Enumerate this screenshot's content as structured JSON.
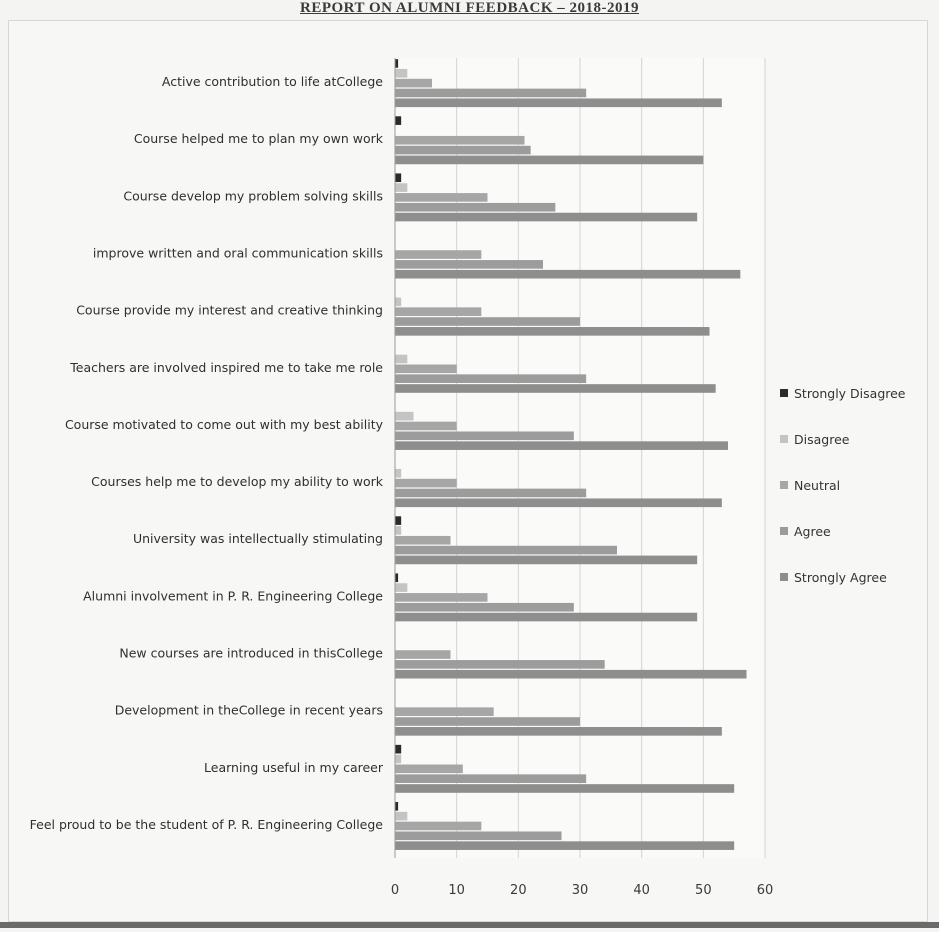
{
  "report_title": "REPORT ON ALUMNI FEEDBACK – 2018-2019",
  "chart_data": {
    "type": "bar",
    "orientation": "horizontal",
    "categories": [
      "Active contribution to life atCollege",
      "Course helped  me to plan my own work",
      "Course develop my problem solving skills",
      "improve written and oral communication skills",
      "Course provide my interest and creative thinking",
      "Teachers are involved inspired me to take me role",
      "Course motivated to come out with my best ability",
      "Courses help me to develop my ability to work",
      "University was intellectually stimulating",
      "Alumni involvement in P. R. Engineering College",
      "New courses are introduced in thisCollege",
      "Development in theCollege in recent years",
      "Learning useful in my career",
      "Feel proud to be the student of P. R. Engineering College"
    ],
    "series": [
      {
        "name": "Strongly Disagree",
        "color": "#2b2b2b",
        "values": [
          0.5,
          1,
          1,
          0,
          0,
          0,
          0,
          0,
          1,
          0.5,
          0,
          0,
          1,
          0.5
        ]
      },
      {
        "name": "Disagree",
        "color": "#c4c4c4",
        "values": [
          2,
          0,
          2,
          0,
          1,
          2,
          3,
          1,
          1,
          2,
          0,
          0,
          1,
          2
        ]
      },
      {
        "name": "Neutral",
        "color": "#a6a6a6",
        "values": [
          6,
          21,
          15,
          14,
          14,
          10,
          10,
          10,
          9,
          15,
          9,
          16,
          11,
          14
        ]
      },
      {
        "name": "Agree",
        "color": "#9c9c9c",
        "values": [
          31,
          22,
          26,
          24,
          30,
          31,
          29,
          31,
          36,
          29,
          34,
          30,
          31,
          27
        ]
      },
      {
        "name": "Strongly Agree",
        "color": "#8e8e8e",
        "values": [
          53,
          50,
          49,
          56,
          51,
          52,
          54,
          53,
          49,
          49,
          57,
          53,
          55,
          55
        ]
      }
    ],
    "xlim": [
      0,
      60
    ],
    "xticks": [
      "0",
      "10",
      "20",
      "30",
      "40",
      "50",
      "60"
    ],
    "grid": true,
    "legend_position": "right"
  }
}
